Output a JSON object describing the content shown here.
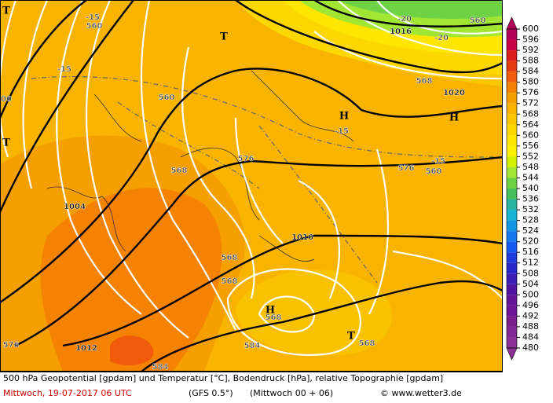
{
  "map": {
    "labels": [
      "T",
      "-15",
      "560",
      "T",
      "-20",
      "560",
      "1016",
      "-20",
      "-15",
      "568",
      "1020",
      "560",
      "H",
      "H",
      "-15",
      "00",
      "T",
      "576",
      "576",
      "-15",
      "568",
      "560",
      "1004",
      "1016",
      "568",
      "568",
      "H",
      "568",
      "T",
      "568",
      "576",
      "1012",
      "584",
      "584"
    ]
  },
  "colorbar": {
    "ticks": [
      600,
      596,
      592,
      588,
      584,
      580,
      576,
      572,
      568,
      564,
      560,
      556,
      552,
      548,
      544,
      540,
      536,
      532,
      528,
      524,
      520,
      516,
      512,
      508,
      504,
      500,
      496,
      492,
      488,
      484,
      480
    ],
    "colors": [
      "#b4005a",
      "#c80046",
      "#dc1e1e",
      "#e63c14",
      "#f05a0a",
      "#f58200",
      "#f5a000",
      "#f8b400",
      "#fac800",
      "#fcd800",
      "#ffe600",
      "#fff000",
      "#d2f000",
      "#a0e632",
      "#6ed246",
      "#46be5a",
      "#28b4a0",
      "#14b4d2",
      "#1496e6",
      "#1478f0",
      "#145af0",
      "#1e3cdc",
      "#2828c8",
      "#3c1eb4",
      "#5014a0",
      "#641496",
      "#6e1496",
      "#781e8c",
      "#822896",
      "#8c3296"
    ]
  },
  "footer": {
    "title": "500 hPa Geopotential [gpdam] und Temperatur [°C], Bodendruck [hPa], relative Topographie [gpdam]",
    "date": "Mittwoch, 19-07-2017  06 UTC",
    "model": "(GFS 0.5°)",
    "run": "(Mittwoch 00 + 06)",
    "source": "© www.wetter3.de"
  }
}
